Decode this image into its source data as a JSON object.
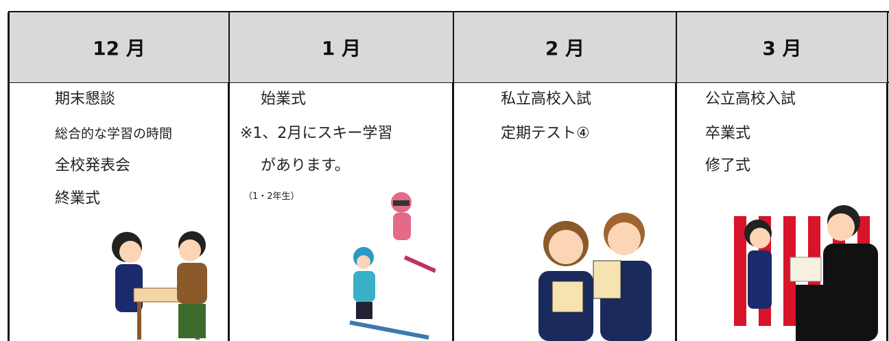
{
  "table": {
    "columns": [
      {
        "month": "12 月",
        "items": [
          "期末懇談",
          "総合的な学習の時間",
          "全校発表会",
          "終業式"
        ]
      },
      {
        "month": "1 月",
        "items": [
          "始業式",
          "※1、2月にスキー学習",
          "があります。",
          "（1・2年生）"
        ]
      },
      {
        "month": "2 月",
        "items": [
          "私立高校入試",
          "定期テスト④"
        ]
      },
      {
        "month": "3 月",
        "items": [
          "公立高校入試",
          "卒業式",
          "修了式"
        ]
      }
    ]
  }
}
